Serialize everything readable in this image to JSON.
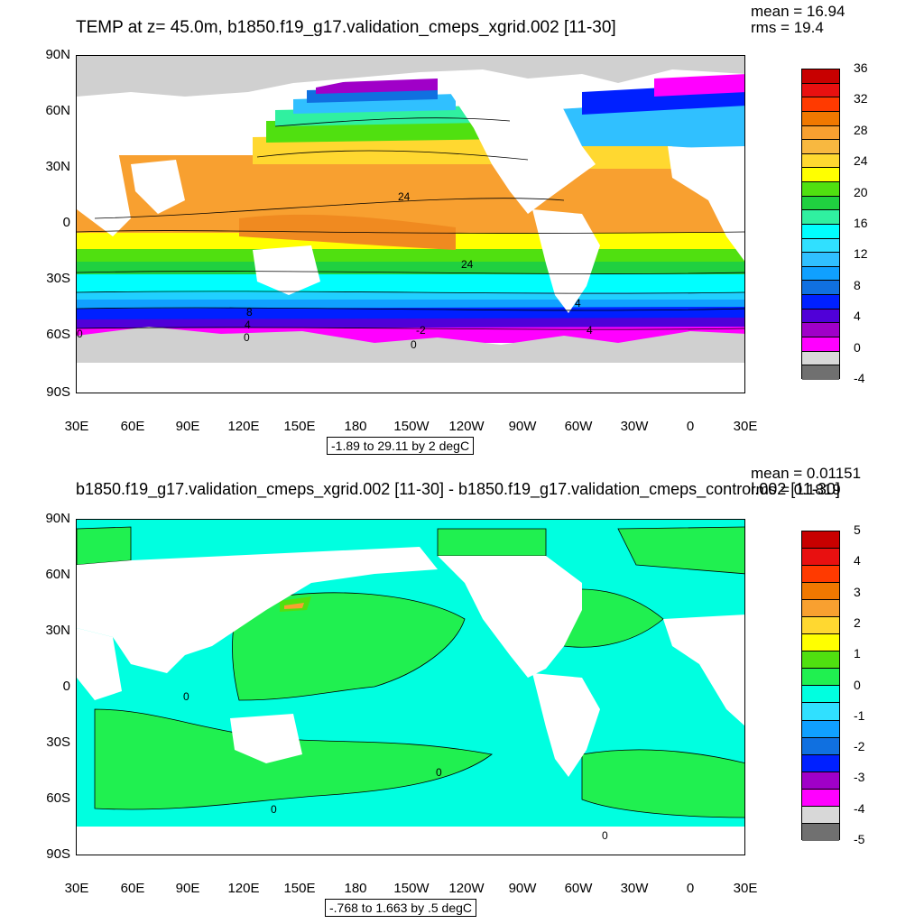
{
  "panel1": {
    "title": "TEMP at z=  45.0m, b1850.f19_g17.validation_cmeps_xgrid.002 [11-30]",
    "mean_text": "mean = 16.94",
    "rms_text": "rms = 19.4",
    "range_text": "-1.89 to 29.11 by 2 degC",
    "colorbar_labels": [
      "36",
      "32",
      "28",
      "24",
      "20",
      "16",
      "12",
      "8",
      "4",
      "0",
      "-4"
    ],
    "colorbar_colors": [
      "#c80000",
      "#e81010",
      "#ff3a00",
      "#f07800",
      "#f8a030",
      "#f8b840",
      "#ffd830",
      "#ffff00",
      "#50e010",
      "#20d040",
      "#30f0a0",
      "#00ffff",
      "#30e0ff",
      "#30c0ff",
      "#10a0ff",
      "#1070e0",
      "#0020ff",
      "#5000d8",
      "#a000c8",
      "#ff00ff",
      "#d8d8d8",
      "#707070"
    ],
    "contour_labels": [
      "24",
      "24",
      "8",
      "4",
      "0",
      "0",
      "0",
      "-2",
      "4",
      "4"
    ]
  },
  "panel2": {
    "title": "b1850.f19_g17.validation_cmeps_xgrid.002 [11-30] - b1850.f19_g17.validation_cmeps_control.002 [11-30]",
    "mean_text": "mean = 0.01151",
    "rms_text": "rms = 0.1819",
    "range_text": "-.768 to 1.663 by .5 degC",
    "colorbar_labels": [
      "5",
      "4",
      "3",
      "2",
      "1",
      "0",
      "-1",
      "-2",
      "-3",
      "-4",
      "-5"
    ],
    "colorbar_colors": [
      "#c80000",
      "#e81010",
      "#ff3a00",
      "#f07800",
      "#f8a030",
      "#ffd830",
      "#ffff00",
      "#50e010",
      "#20f050",
      "#00ffe0",
      "#30e0ff",
      "#10a0ff",
      "#1070e0",
      "#0020ff",
      "#a000c8",
      "#ff00ff",
      "#d8d8d8",
      "#707070"
    ],
    "contour_labels": [
      "0",
      "0",
      "0",
      "0"
    ]
  },
  "lat_labels": [
    "90N",
    "60N",
    "30N",
    "0",
    "30S",
    "60S",
    "90S"
  ],
  "lon_labels": [
    "30E",
    "60E",
    "90E",
    "120E",
    "150E",
    "180",
    "150W",
    "120W",
    "90W",
    "60W",
    "30W",
    "0",
    "30E"
  ],
  "colors": {
    "land_gray": "#d0d0d0",
    "background": "#ffffff"
  }
}
